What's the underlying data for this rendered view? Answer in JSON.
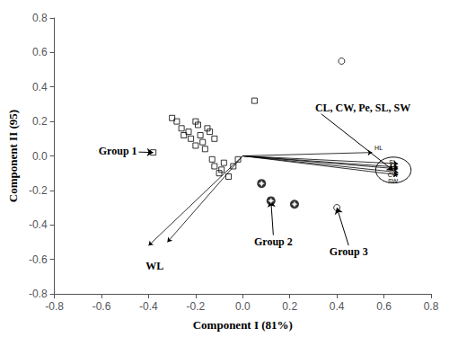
{
  "chart_data": {
    "type": "scatter",
    "xlabel": "Component I (81%)",
    "ylabel": "Component II (95)",
    "xlim": [
      -0.8,
      0.8
    ],
    "ylim": [
      -0.8,
      0.8
    ],
    "xticks": [
      -0.8,
      -0.6,
      -0.4,
      -0.2,
      {
        "value": 0.0,
        "label": "0.0"
      },
      0.2,
      0.4,
      0.6,
      0.8
    ],
    "yticks": [
      -0.8,
      -0.6,
      -0.4,
      -0.2,
      {
        "value": 0.0,
        "label": "0.0"
      },
      0.2,
      0.4,
      0.6,
      0.8
    ],
    "grid": false,
    "series": [
      {
        "type": "scatter",
        "marker": "square",
        "color": "#000000",
        "values": [
          [
            -0.38,
            0.02
          ],
          [
            -0.3,
            0.22
          ],
          [
            -0.28,
            0.2
          ],
          [
            -0.26,
            0.16
          ],
          [
            -0.25,
            0.12
          ],
          [
            -0.23,
            0.14
          ],
          [
            -0.22,
            0.1
          ],
          [
            -0.2,
            0.2
          ],
          [
            -0.2,
            0.06
          ],
          [
            -0.19,
            0.18
          ],
          [
            -0.18,
            0.12
          ],
          [
            -0.17,
            0.08
          ],
          [
            -0.16,
            0.04
          ],
          [
            -0.15,
            0.16
          ],
          [
            -0.14,
            0.14
          ],
          [
            -0.13,
            -0.02
          ],
          [
            -0.12,
            0.1
          ],
          [
            -0.12,
            -0.06
          ],
          [
            -0.1,
            -0.1
          ],
          [
            -0.09,
            -0.08
          ],
          [
            -0.08,
            -0.04
          ],
          [
            -0.06,
            -0.12
          ],
          [
            -0.04,
            -0.06
          ],
          [
            -0.02,
            -0.02
          ],
          [
            0.05,
            0.32
          ]
        ]
      },
      {
        "type": "scatter",
        "marker": "target",
        "color": "#000000",
        "values": [
          [
            0.08,
            -0.16
          ],
          [
            0.12,
            -0.26
          ],
          [
            0.22,
            -0.28
          ]
        ]
      },
      {
        "type": "scatter",
        "marker": "circle",
        "color": "#000000",
        "values": [
          [
            0.4,
            -0.3
          ],
          [
            0.42,
            0.55
          ]
        ]
      }
    ],
    "vectors": [
      [
        -0.4,
        -0.52
      ],
      [
        0.66,
        -0.065
      ],
      [
        0.66,
        -0.095
      ],
      [
        0.55,
        0.02
      ],
      [
        0.66,
        -0.045
      ],
      [
        0.66,
        -0.075
      ],
      [
        0.66,
        -0.11
      ],
      [
        -0.32,
        -0.5
      ]
    ],
    "circle": {
      "center": [
        0.64,
        -0.082
      ],
      "radius": 0.075
    },
    "vector_labels": [
      {
        "text": "HL",
        "x": 0.56,
        "y": 0.03
      },
      {
        "text": "SL",
        "x": 0.638,
        "y": -0.06
      },
      {
        "text": "CL",
        "x": 0.638,
        "y": -0.08
      },
      {
        "text": "CW",
        "x": 0.638,
        "y": -0.1
      },
      {
        "text": "SW",
        "x": 0.638,
        "y": -0.115
      }
    ],
    "annotations": [
      {
        "text": "Group 1",
        "xy": [
          -0.38,
          0.02
        ],
        "xytext": [
          -0.62,
          0.03
        ]
      },
      {
        "text": "Group 2",
        "xy": [
          0.12,
          -0.26
        ],
        "xytext": [
          0.13,
          -0.46
        ]
      },
      {
        "text": "Group 3",
        "xy": [
          0.4,
          -0.3
        ],
        "xytext": [
          0.45,
          -0.52
        ]
      },
      {
        "text": "WL",
        "xytext": [
          -0.42,
          -0.6
        ]
      },
      {
        "text": "CL, CW, Pe, SL, SW",
        "xy": [
          0.64,
          -0.085
        ],
        "xytext": [
          0.3,
          0.28
        ]
      }
    ]
  }
}
